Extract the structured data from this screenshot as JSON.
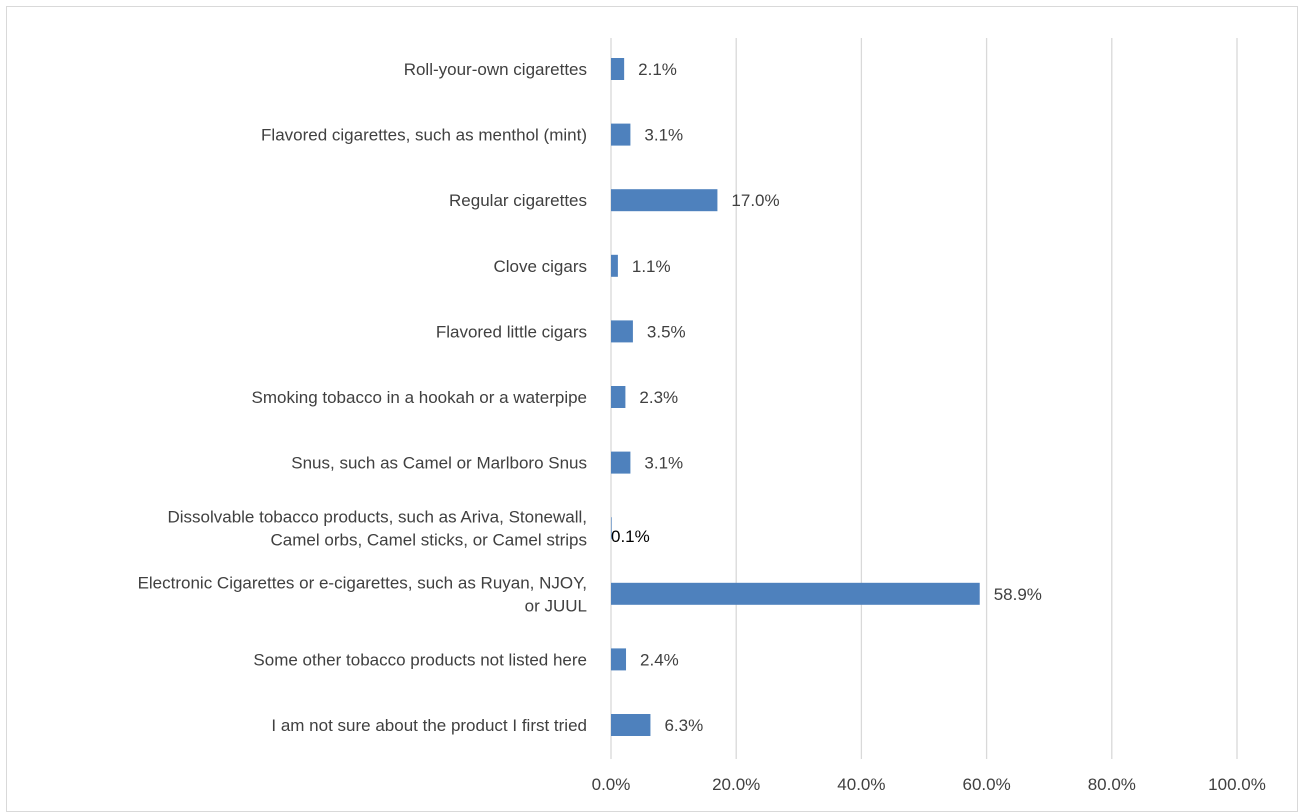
{
  "chart_data": {
    "type": "bar",
    "orientation": "horizontal",
    "title": "",
    "xlabel": "",
    "ylabel": "",
    "xlim": [
      0,
      100
    ],
    "grid": "vertical",
    "legend": "none",
    "bar_color": "#4e81bd",
    "gridline_color": "#d9d9d9",
    "categories": [
      [
        "Roll-your-own cigarettes"
      ],
      [
        "Flavored cigarettes, such as menthol (mint)"
      ],
      [
        "Regular cigarettes"
      ],
      [
        "Clove cigars"
      ],
      [
        "Flavored little cigars"
      ],
      [
        "Smoking tobacco in a hookah or a waterpipe"
      ],
      [
        "Snus, such as Camel or Marlboro Snus"
      ],
      [
        "Dissolvable tobacco products, such as Ariva, Stonewall,",
        "Camel orbs, Camel sticks, or Camel strips"
      ],
      [
        "Electronic Cigarettes or e-cigarettes, such as Ruyan, NJOY,",
        "or JUUL"
      ],
      [
        "Some other tobacco products not listed here"
      ],
      [
        "I am not sure about the product I first tried"
      ]
    ],
    "values": [
      2.1,
      3.1,
      17.0,
      1.1,
      3.5,
      2.3,
      3.1,
      0.1,
      58.9,
      2.4,
      6.3
    ],
    "value_labels": [
      "2.1%",
      "3.1%",
      "17.0%",
      "1.1%",
      "3.5%",
      "2.3%",
      "3.1%",
      "0.1%",
      "58.9%",
      "2.4%",
      "6.3%"
    ],
    "x_ticks": [
      0,
      20,
      40,
      60,
      80,
      100
    ],
    "x_tick_labels": [
      "0.0%",
      "20.0%",
      "40.0%",
      "60.0%",
      "80.0%",
      "100.0%"
    ]
  }
}
